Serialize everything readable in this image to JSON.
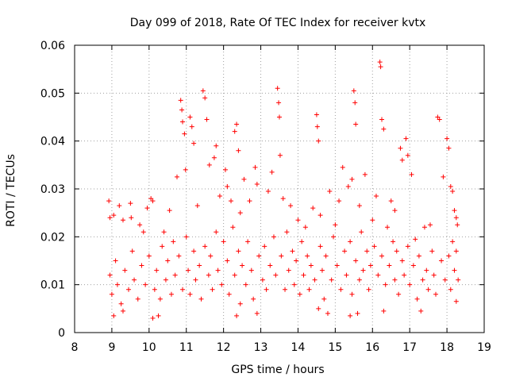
{
  "chart_data": {
    "type": "scatter",
    "title": "Day 099 of 2018, Rate Of TEC Index for receiver kvtx",
    "xlabel": "GPS time / hours",
    "ylabel": "ROTI / TECUs",
    "xlim": [
      8,
      19
    ],
    "ylim": [
      0,
      0.06
    ],
    "x_ticks": [
      "8",
      "9",
      "10",
      "11",
      "12",
      "13",
      "14",
      "15",
      "16",
      "17",
      "18",
      "19"
    ],
    "y_ticks": [
      "0",
      "0.01",
      "0.02",
      "0.03",
      "0.04",
      "0.05",
      "0.06"
    ],
    "grid": true,
    "marker": "+",
    "color": "#ff0000",
    "series": [
      {
        "name": "ROTI",
        "points": [
          [
            8.92,
            0.0275
          ],
          [
            8.95,
            0.024
          ],
          [
            9.05,
            0.0245
          ],
          [
            9.2,
            0.0265
          ],
          [
            9.3,
            0.0235
          ],
          [
            9.5,
            0.027
          ],
          [
            9.52,
            0.024
          ],
          [
            9.75,
            0.0225
          ],
          [
            9.85,
            0.021
          ],
          [
            9.95,
            0.026
          ],
          [
            10.05,
            0.028
          ],
          [
            10.1,
            0.0275
          ],
          [
            10.4,
            0.021
          ],
          [
            10.55,
            0.0255
          ],
          [
            10.75,
            0.0325
          ],
          [
            10.85,
            0.0485
          ],
          [
            10.88,
            0.0465
          ],
          [
            10.9,
            0.044
          ],
          [
            10.95,
            0.0415
          ],
          [
            10.98,
            0.034
          ],
          [
            11.1,
            0.045
          ],
          [
            11.15,
            0.043
          ],
          [
            11.2,
            0.0395
          ],
          [
            11.3,
            0.0265
          ],
          [
            11.45,
            0.0505
          ],
          [
            11.5,
            0.049
          ],
          [
            11.55,
            0.0445
          ],
          [
            11.62,
            0.035
          ],
          [
            11.75,
            0.0365
          ],
          [
            11.8,
            0.039
          ],
          [
            11.9,
            0.0285
          ],
          [
            12.05,
            0.034
          ],
          [
            12.1,
            0.0305
          ],
          [
            12.2,
            0.0275
          ],
          [
            12.3,
            0.042
          ],
          [
            12.35,
            0.0435
          ],
          [
            12.4,
            0.038
          ],
          [
            12.45,
            0.025
          ],
          [
            12.55,
            0.032
          ],
          [
            12.7,
            0.0275
          ],
          [
            12.85,
            0.0345
          ],
          [
            12.9,
            0.031
          ],
          [
            13.2,
            0.0295
          ],
          [
            13.3,
            0.0335
          ],
          [
            13.45,
            0.051
          ],
          [
            13.48,
            0.048
          ],
          [
            13.5,
            0.045
          ],
          [
            13.52,
            0.037
          ],
          [
            13.6,
            0.028
          ],
          [
            13.8,
            0.0265
          ],
          [
            14.0,
            0.0235
          ],
          [
            14.2,
            0.022
          ],
          [
            14.4,
            0.026
          ],
          [
            14.5,
            0.0455
          ],
          [
            14.52,
            0.043
          ],
          [
            14.55,
            0.04
          ],
          [
            14.6,
            0.0245
          ],
          [
            14.85,
            0.0295
          ],
          [
            15.0,
            0.0225
          ],
          [
            15.1,
            0.0275
          ],
          [
            15.2,
            0.0345
          ],
          [
            15.35,
            0.0305
          ],
          [
            15.45,
            0.032
          ],
          [
            15.5,
            0.0505
          ],
          [
            15.53,
            0.048
          ],
          [
            15.55,
            0.0435
          ],
          [
            15.65,
            0.0265
          ],
          [
            15.8,
            0.033
          ],
          [
            16.0,
            0.0235
          ],
          [
            16.1,
            0.0285
          ],
          [
            16.2,
            0.0565
          ],
          [
            16.22,
            0.0555
          ],
          [
            16.25,
            0.0445
          ],
          [
            16.3,
            0.0425
          ],
          [
            16.5,
            0.0275
          ],
          [
            16.6,
            0.0255
          ],
          [
            16.75,
            0.0385
          ],
          [
            16.8,
            0.036
          ],
          [
            16.9,
            0.0405
          ],
          [
            16.95,
            0.037
          ],
          [
            17.05,
            0.033
          ],
          [
            17.15,
            0.0195
          ],
          [
            17.4,
            0.022
          ],
          [
            17.55,
            0.0225
          ],
          [
            17.75,
            0.045
          ],
          [
            17.8,
            0.0445
          ],
          [
            17.9,
            0.0325
          ],
          [
            18.0,
            0.0405
          ],
          [
            18.05,
            0.0385
          ],
          [
            18.1,
            0.0305
          ],
          [
            18.15,
            0.0295
          ],
          [
            18.2,
            0.0255
          ],
          [
            18.25,
            0.024
          ],
          [
            18.28,
            0.0225
          ],
          [
            9.05,
            0.0035
          ],
          [
            9.3,
            0.0045
          ],
          [
            10.1,
            0.003
          ],
          [
            10.25,
            0.0035
          ],
          [
            12.35,
            0.0035
          ],
          [
            12.9,
            0.004
          ],
          [
            14.55,
            0.005
          ],
          [
            14.8,
            0.004
          ],
          [
            15.4,
            0.0035
          ],
          [
            15.6,
            0.004
          ],
          [
            16.3,
            0.0045
          ],
          [
            17.3,
            0.0045
          ],
          [
            18.25,
            0.0065
          ],
          [
            8.95,
            0.012
          ],
          [
            9.0,
            0.008
          ],
          [
            9.1,
            0.015
          ],
          [
            9.15,
            0.01
          ],
          [
            9.25,
            0.006
          ],
          [
            9.35,
            0.013
          ],
          [
            9.45,
            0.009
          ],
          [
            9.55,
            0.017
          ],
          [
            9.6,
            0.011
          ],
          [
            9.7,
            0.007
          ],
          [
            9.8,
            0.014
          ],
          [
            9.9,
            0.01
          ],
          [
            10.0,
            0.016
          ],
          [
            10.15,
            0.009
          ],
          [
            10.2,
            0.013
          ],
          [
            10.3,
            0.007
          ],
          [
            10.35,
            0.018
          ],
          [
            10.45,
            0.011
          ],
          [
            10.5,
            0.015
          ],
          [
            10.6,
            0.008
          ],
          [
            10.65,
            0.019
          ],
          [
            10.7,
            0.012
          ],
          [
            10.8,
            0.016
          ],
          [
            10.9,
            0.009
          ],
          [
            11.0,
            0.02
          ],
          [
            11.05,
            0.013
          ],
          [
            11.1,
            0.008
          ],
          [
            11.2,
            0.017
          ],
          [
            11.25,
            0.011
          ],
          [
            11.35,
            0.014
          ],
          [
            11.4,
            0.007
          ],
          [
            11.5,
            0.018
          ],
          [
            11.6,
            0.012
          ],
          [
            11.65,
            0.016
          ],
          [
            11.7,
            0.009
          ],
          [
            11.8,
            0.021
          ],
          [
            11.85,
            0.013
          ],
          [
            11.95,
            0.01
          ],
          [
            12.0,
            0.019
          ],
          [
            12.1,
            0.015
          ],
          [
            12.15,
            0.008
          ],
          [
            12.25,
            0.022
          ],
          [
            12.3,
            0.012
          ],
          [
            12.4,
            0.017
          ],
          [
            12.45,
            0.006
          ],
          [
            12.5,
            0.014
          ],
          [
            12.6,
            0.01
          ],
          [
            12.65,
            0.019
          ],
          [
            12.75,
            0.013
          ],
          [
            12.8,
            0.007
          ],
          [
            12.95,
            0.016
          ],
          [
            13.05,
            0.011
          ],
          [
            13.1,
            0.018
          ],
          [
            13.15,
            0.009
          ],
          [
            13.25,
            0.014
          ],
          [
            13.35,
            0.02
          ],
          [
            13.4,
            0.012
          ],
          [
            13.55,
            0.016
          ],
          [
            13.65,
            0.009
          ],
          [
            13.7,
            0.021
          ],
          [
            13.75,
            0.013
          ],
          [
            13.85,
            0.017
          ],
          [
            13.9,
            0.01
          ],
          [
            13.95,
            0.015
          ],
          [
            14.05,
            0.008
          ],
          [
            14.1,
            0.019
          ],
          [
            14.15,
            0.012
          ],
          [
            14.25,
            0.016
          ],
          [
            14.3,
            0.009
          ],
          [
            14.35,
            0.014
          ],
          [
            14.45,
            0.011
          ],
          [
            14.6,
            0.018
          ],
          [
            14.65,
            0.013
          ],
          [
            14.7,
            0.007
          ],
          [
            14.75,
            0.016
          ],
          [
            14.9,
            0.011
          ],
          [
            14.95,
            0.02
          ],
          [
            15.05,
            0.014
          ],
          [
            15.15,
            0.009
          ],
          [
            15.25,
            0.017
          ],
          [
            15.3,
            0.012
          ],
          [
            15.4,
            0.019
          ],
          [
            15.45,
            0.008
          ],
          [
            15.55,
            0.015
          ],
          [
            15.65,
            0.011
          ],
          [
            15.7,
            0.021
          ],
          [
            15.75,
            0.013
          ],
          [
            15.85,
            0.017
          ],
          [
            15.9,
            0.009
          ],
          [
            15.95,
            0.014
          ],
          [
            16.05,
            0.018
          ],
          [
            16.15,
            0.012
          ],
          [
            16.25,
            0.016
          ],
          [
            16.35,
            0.01
          ],
          [
            16.4,
            0.022
          ],
          [
            16.45,
            0.014
          ],
          [
            16.55,
            0.019
          ],
          [
            16.6,
            0.011
          ],
          [
            16.65,
            0.017
          ],
          [
            16.7,
            0.008
          ],
          [
            16.8,
            0.015
          ],
          [
            16.85,
            0.012
          ],
          [
            16.95,
            0.018
          ],
          [
            17.0,
            0.01
          ],
          [
            17.1,
            0.014
          ],
          [
            17.2,
            0.007
          ],
          [
            17.25,
            0.016
          ],
          [
            17.35,
            0.011
          ],
          [
            17.45,
            0.013
          ],
          [
            17.5,
            0.009
          ],
          [
            17.6,
            0.017
          ],
          [
            17.65,
            0.012
          ],
          [
            17.7,
            0.008
          ],
          [
            17.85,
            0.015
          ],
          [
            17.95,
            0.011
          ],
          [
            18.05,
            0.016
          ],
          [
            18.1,
            0.009
          ],
          [
            18.15,
            0.019
          ],
          [
            18.2,
            0.013
          ],
          [
            18.25,
            0.017
          ],
          [
            18.3,
            0.011
          ]
        ]
      }
    ]
  }
}
